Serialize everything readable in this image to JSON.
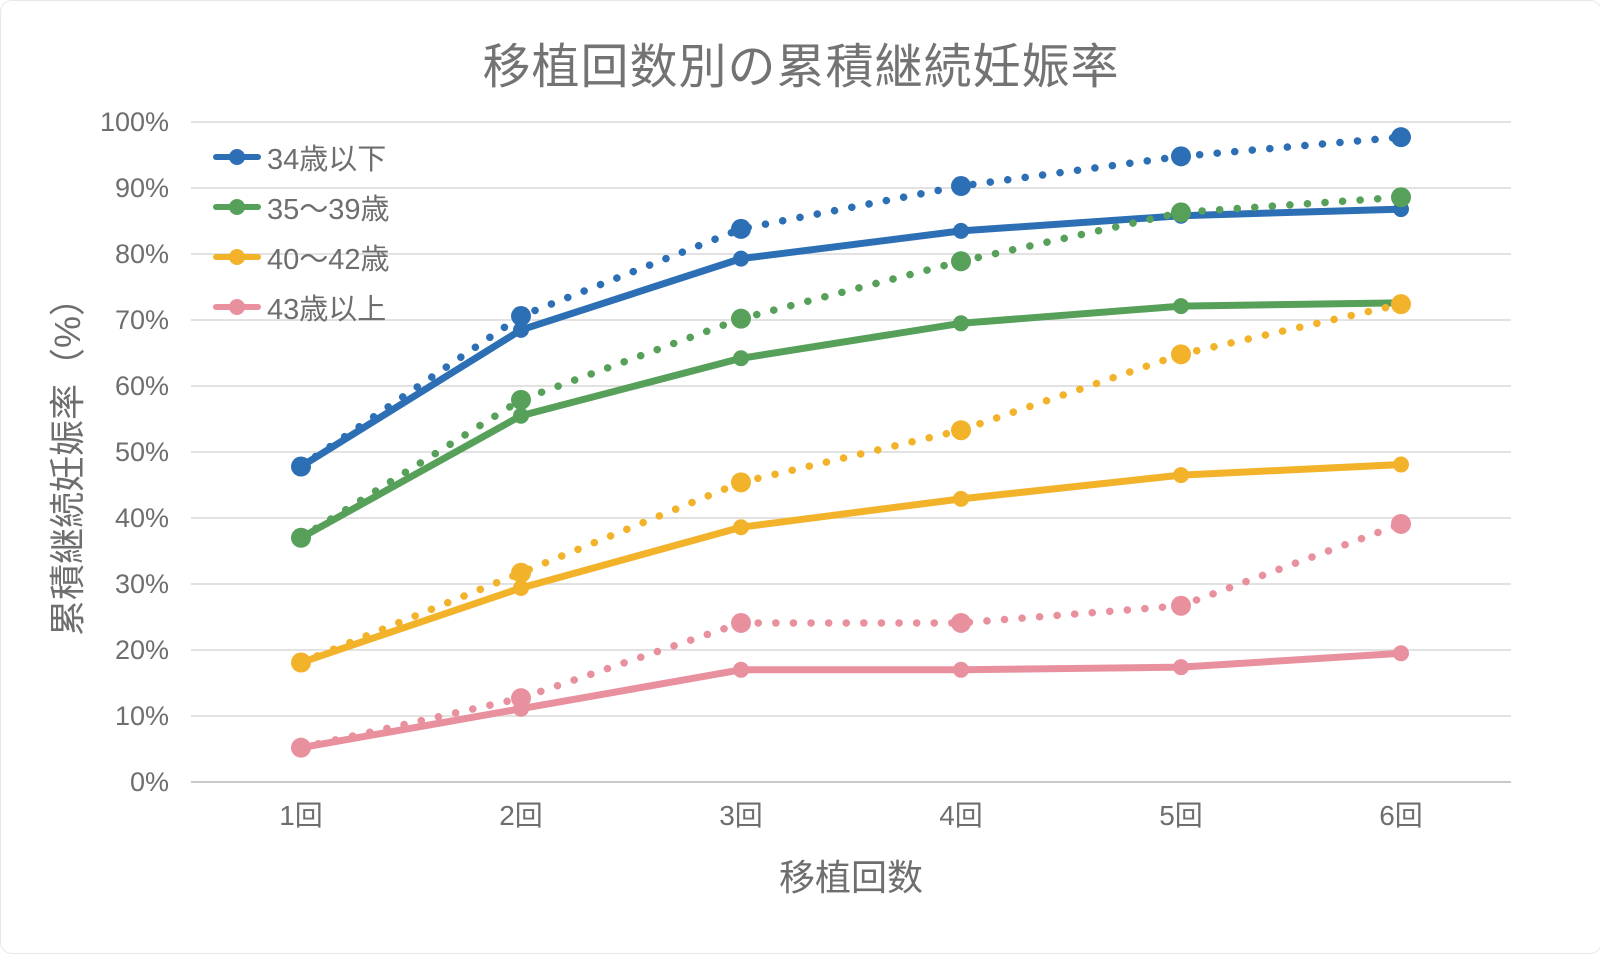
{
  "title": "移植回数別の累積継続妊娠率",
  "chart_data": {
    "type": "line",
    "title": "移植回数別の累積継続妊娠率",
    "xlabel": "移植回数",
    "ylabel": "累積継続妊娠率（%）",
    "categories": [
      "1回",
      "2回",
      "3回",
      "4回",
      "5回",
      "6回"
    ],
    "y_tick_labels": [
      "0%",
      "10%",
      "20%",
      "30%",
      "40%",
      "50%",
      "60%",
      "70%",
      "80%",
      "90%",
      "100%"
    ],
    "ylim": [
      0,
      100
    ],
    "grid": "horizontal",
    "legend_position": "top-left-inside",
    "legend_entries": [
      "34歳以下",
      "35〜39歳",
      "40〜42歳",
      "43歳以上"
    ],
    "series": [
      {
        "name": "34歳以下",
        "color": "#2D6FB5",
        "solid": [
          47.8,
          68.5,
          79.3,
          83.5,
          85.8,
          86.8
        ],
        "dotted": [
          47.8,
          70.6,
          83.8,
          90.3,
          94.8,
          97.7
        ]
      },
      {
        "name": "35〜39歳",
        "color": "#56A05A",
        "solid": [
          37.0,
          55.5,
          64.2,
          69.5,
          72.1,
          72.6
        ],
        "dotted": [
          37.0,
          57.9,
          70.2,
          78.9,
          86.3,
          88.6
        ]
      },
      {
        "name": "40〜42歳",
        "color": "#F2B32B",
        "solid": [
          18.1,
          29.4,
          38.6,
          42.9,
          46.5,
          48.1
        ],
        "dotted": [
          18.1,
          31.7,
          45.4,
          53.3,
          64.8,
          72.4
        ]
      },
      {
        "name": "43歳以上",
        "color": "#E9909E",
        "solid": [
          5.2,
          11.1,
          17.0,
          17.0,
          17.4,
          19.5
        ],
        "dotted": [
          5.2,
          12.7,
          24.1,
          24.1,
          26.7,
          39.1
        ]
      }
    ]
  }
}
